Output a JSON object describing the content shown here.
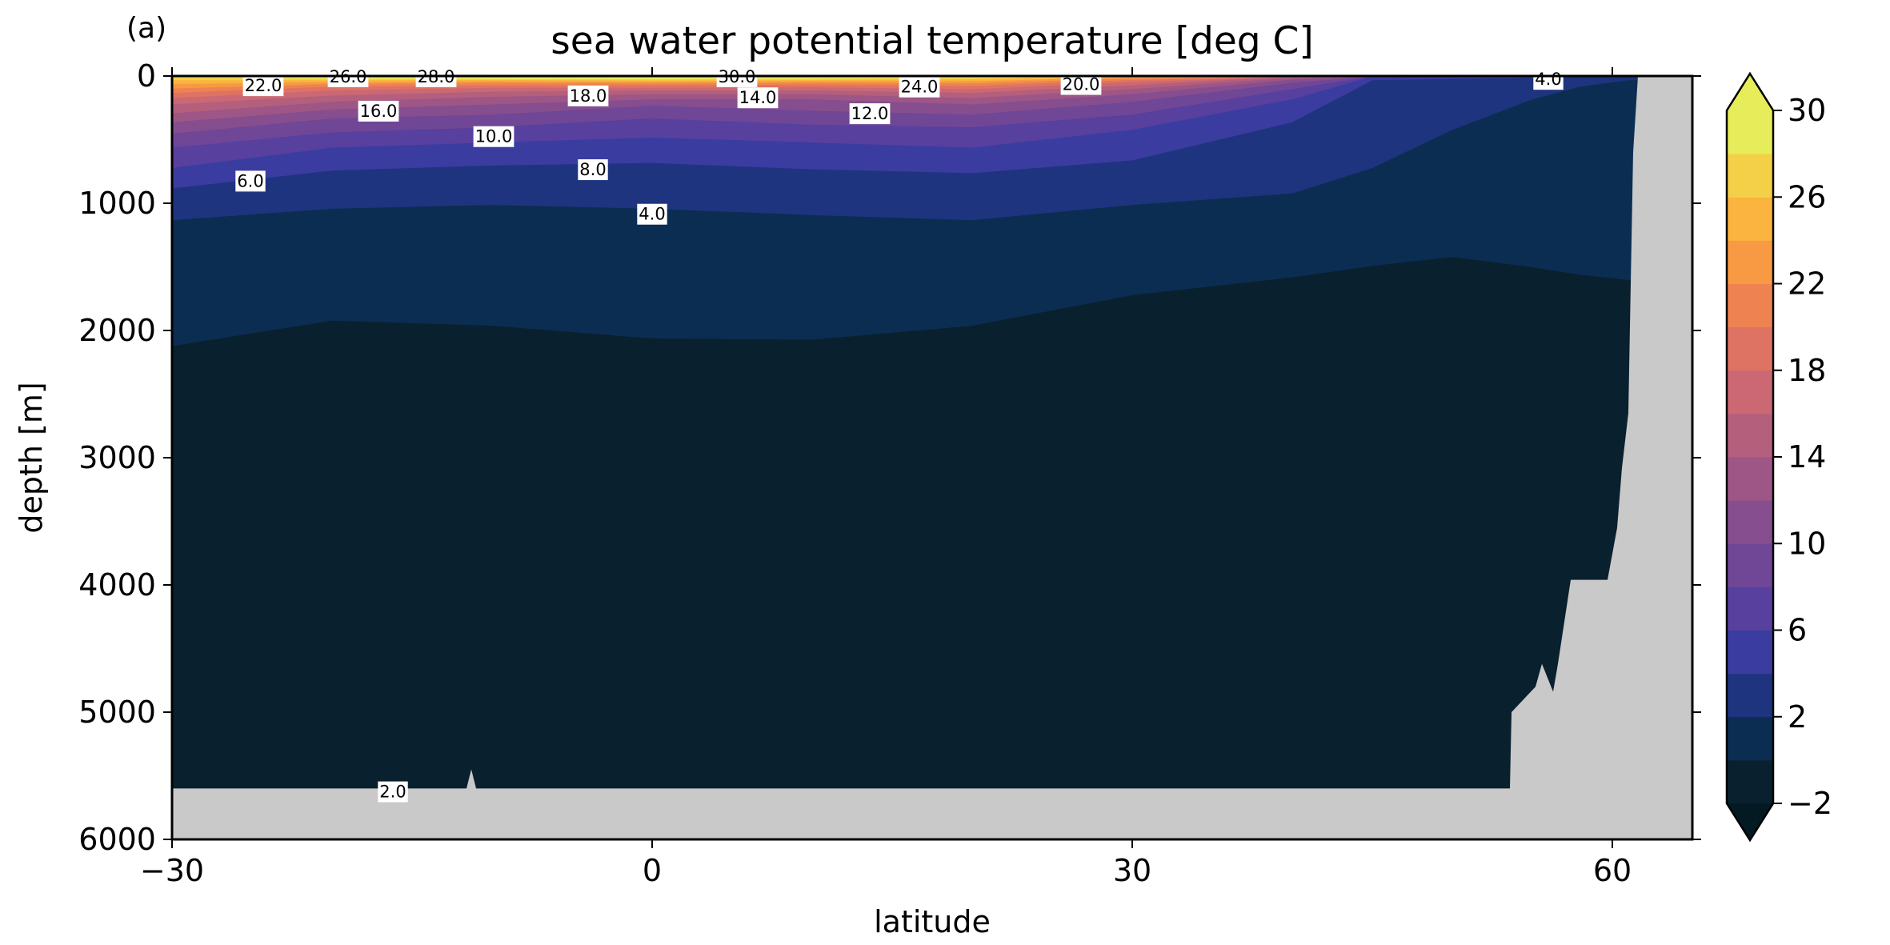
{
  "chart_data": {
    "type": "contourf",
    "panel_label": "(a)",
    "title": "sea water potential temperature [deg C]",
    "xlabel": "latitude",
    "ylabel": "depth [m]",
    "xlim": [
      -30,
      65
    ],
    "ylim": [
      6000,
      0
    ],
    "y_inverted": true,
    "xticks": [
      -30,
      0,
      30,
      60
    ],
    "xtick_labels": [
      "−30",
      "0",
      "30",
      "60"
    ],
    "yticks": [
      0,
      1000,
      2000,
      3000,
      4000,
      5000,
      6000
    ],
    "ytick_labels": [
      "0",
      "1000",
      "2000",
      "3000",
      "4000",
      "5000",
      "6000"
    ],
    "levels": [
      -2,
      0,
      2,
      4,
      6,
      8,
      10,
      12,
      14,
      16,
      18,
      20,
      22,
      24,
      26,
      28,
      30
    ],
    "colormap": "thermal",
    "colors": [
      "#09202e",
      "#0b2d52",
      "#1f347f",
      "#3b3ca0",
      "#57409e",
      "#704696",
      "#864e8e",
      "#9d5686",
      "#b45f7c",
      "#cb6874",
      "#df7363",
      "#ee8351",
      "#f79a43",
      "#fbb43f",
      "#f4cf48",
      "#e7ec5a"
    ],
    "extend": "both",
    "land_color": "#c9c9c9",
    "colorbar": {
      "ticks": [
        -2,
        2,
        6,
        10,
        14,
        18,
        22,
        26,
        30
      ],
      "tick_labels": [
        "−2",
        "2",
        "6",
        "10",
        "14",
        "18",
        "22",
        "26",
        "30"
      ],
      "placement": "right"
    },
    "isotherm_depth_profiles": {
      "lat": [
        -30,
        -20,
        -10,
        0,
        10,
        20,
        30,
        40,
        45,
        50,
        55,
        58,
        61
      ],
      "upper_bound_of_band": {
        "0": [
          2120,
          1920,
          1960,
          2060,
          2070,
          1960,
          1720,
          1580,
          1490,
          1420,
          1500,
          1560,
          1600
        ],
        "2": [
          1130,
          1040,
          1010,
          1040,
          1090,
          1130,
          1010,
          920,
          720,
          420,
          180,
          80,
          30
        ],
        "4": [
          880,
          740,
          700,
          680,
          730,
          760,
          660,
          360,
          30,
          20,
          10,
          0,
          0
        ],
        "6": [
          720,
          560,
          520,
          480,
          520,
          560,
          420,
          180,
          0,
          0,
          0,
          0,
          0
        ],
        "8": [
          560,
          440,
          400,
          330,
          380,
          400,
          300,
          100,
          0,
          0,
          0,
          0,
          0
        ],
        "10": [
          450,
          330,
          300,
          230,
          270,
          300,
          200,
          50,
          0,
          0,
          0,
          0,
          0
        ],
        "12": [
          360,
          260,
          220,
          180,
          180,
          220,
          140,
          25,
          0,
          0,
          0,
          0,
          0
        ],
        "14": [
          290,
          200,
          160,
          140,
          140,
          170,
          100,
          10,
          0,
          0,
          0,
          0,
          0
        ],
        "16": [
          220,
          150,
          120,
          110,
          110,
          130,
          70,
          0,
          0,
          0,
          0,
          0,
          0
        ],
        "18": [
          170,
          110,
          90,
          90,
          85,
          100,
          45,
          0,
          0,
          0,
          0,
          0,
          0
        ],
        "20": [
          130,
          80,
          70,
          70,
          65,
          75,
          28,
          0,
          0,
          0,
          0,
          0,
          0
        ],
        "22": [
          95,
          60,
          50,
          55,
          50,
          55,
          15,
          0,
          0,
          0,
          0,
          0,
          0
        ],
        "24": [
          60,
          45,
          38,
          42,
          38,
          38,
          5,
          0,
          0,
          0,
          0,
          0,
          0
        ],
        "26": [
          30,
          30,
          28,
          32,
          28,
          22,
          0,
          0,
          0,
          0,
          0,
          0,
          0
        ],
        "28": [
          8,
          18,
          20,
          22,
          18,
          10,
          0,
          0,
          0,
          0,
          0,
          0,
          0
        ]
      }
    },
    "seafloor": {
      "lat": [
        -30,
        -11.6,
        -11.3,
        -11.0,
        53.6,
        53.7,
        55.2,
        55.6,
        56.3,
        56.6,
        57.4,
        58.3,
        59.7,
        60.3,
        60.6,
        61.0,
        61.3,
        61.6,
        65
      ],
      "depth": [
        5600,
        5600,
        5450,
        5600,
        5600,
        5000,
        4800,
        4620,
        4840,
        4620,
        3960,
        3960,
        3960,
        3550,
        3080,
        2650,
        600,
        0,
        0
      ]
    },
    "contour_labels": [
      {
        "text": "22.0",
        "lat": -24.3,
        "depth": 70
      },
      {
        "text": "26.0",
        "lat": -19.0,
        "depth": 0
      },
      {
        "text": "28.0",
        "lat": -13.5,
        "depth": 0
      },
      {
        "text": "16.0",
        "lat": -17.1,
        "depth": 270
      },
      {
        "text": "18.0",
        "lat": -4.0,
        "depth": 150
      },
      {
        "text": "30.0",
        "lat": 5.3,
        "depth": 0
      },
      {
        "text": "14.0",
        "lat": 6.6,
        "depth": 165
      },
      {
        "text": "12.0",
        "lat": 13.6,
        "depth": 290
      },
      {
        "text": "24.0",
        "lat": 16.7,
        "depth": 80
      },
      {
        "text": "20.0",
        "lat": 26.8,
        "depth": 60
      },
      {
        "text": "10.0",
        "lat": -9.9,
        "depth": 470
      },
      {
        "text": "8.0",
        "lat": -3.7,
        "depth": 730
      },
      {
        "text": "6.0",
        "lat": -25.1,
        "depth": 820
      },
      {
        "text": "4.0",
        "lat": 0,
        "depth": 1080
      },
      {
        "text": "4.0",
        "lat": 56.0,
        "depth": 20
      },
      {
        "text": "2.0",
        "lat": -16.2,
        "depth": 5620
      }
    ]
  }
}
